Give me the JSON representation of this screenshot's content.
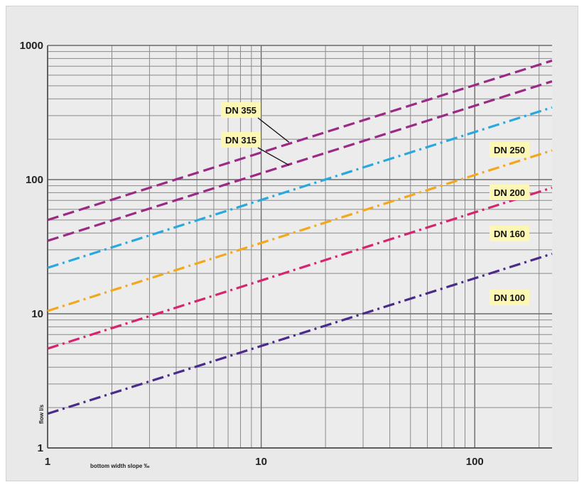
{
  "chart_data": {
    "type": "line",
    "title": "",
    "xlabel": "bottom width slope ‰",
    "ylabel": "flow l/s",
    "x_scale": "log",
    "y_scale": "log",
    "xlim": [
      1,
      230
    ],
    "ylim": [
      1,
      1000
    ],
    "x_ticks": [
      "1",
      "10",
      "100"
    ],
    "y_ticks": [
      "1",
      "10",
      "100",
      "1000"
    ],
    "grid": true,
    "series": [
      {
        "name": "DN 355",
        "color": "#9a2a86",
        "dash": "dash",
        "x": [
          1,
          230
        ],
        "y": [
          50,
          770
        ]
      },
      {
        "name": "DN 315",
        "color": "#9a2a86",
        "dash": "dash",
        "x": [
          1,
          230
        ],
        "y": [
          35,
          540
        ]
      },
      {
        "name": "DN 250",
        "color": "#29a8e0",
        "dash": "dashdot",
        "x": [
          1,
          230
        ],
        "y": [
          22,
          345
        ]
      },
      {
        "name": "DN 200",
        "color": "#f2a81d",
        "dash": "dashdot",
        "x": [
          1,
          230
        ],
        "y": [
          10.5,
          165
        ]
      },
      {
        "name": "DN 160",
        "color": "#d6246e",
        "dash": "dashdot",
        "x": [
          1,
          230
        ],
        "y": [
          5.5,
          87
        ]
      },
      {
        "name": "DN 100",
        "color": "#4a2a8a",
        "dash": "dashdot",
        "x": [
          1,
          230
        ],
        "y": [
          1.8,
          28
        ]
      }
    ],
    "labels": [
      {
        "text": "DN 355",
        "leader": true,
        "x": 13.5,
        "y": 190
      },
      {
        "text": "DN 315",
        "leader": true,
        "x": 13.5,
        "y": 128
      },
      {
        "text": "DN 250",
        "leader": false
      },
      {
        "text": "DN 200",
        "leader": false
      },
      {
        "text": "DN 160",
        "leader": false
      },
      {
        "text": "DN 100",
        "leader": false
      }
    ],
    "label_bg": "#fdf7b6"
  }
}
